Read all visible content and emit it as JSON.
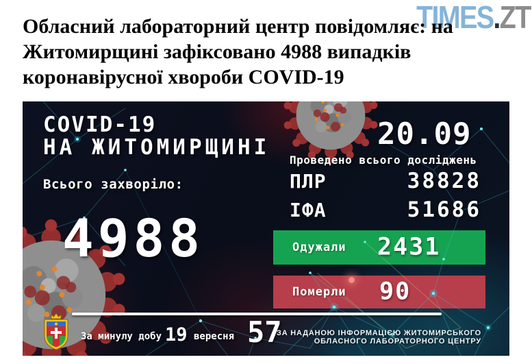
{
  "header": {
    "title_lines": [
      "Обласний лабораторний центр повідомляє: на",
      "Житомирщині зафіксовано 4988 випадків",
      "коронавірусної хвороби COVID-19"
    ],
    "logo": {
      "primary": "TIMES",
      "dot": ".",
      "suffix": "ZT",
      "primary_color": "#85b4d9",
      "dot_color": "#22313f",
      "suffix_color": "#8c8c8c"
    }
  },
  "infographic": {
    "title_line1": "COVID-19",
    "title_line2": "НА ЖИТОМИРЩИНІ",
    "total_label": "Всього захворіло:",
    "total_value": "4988",
    "date": "20.09",
    "tests_label": "Проведено всього досліджень",
    "tests": [
      {
        "label": "ПЛР",
        "value": "38828"
      },
      {
        "label": "ІФА",
        "value": "51686"
      }
    ],
    "recovered": {
      "label": "Одужали",
      "value": "2431",
      "color": "#16a351"
    },
    "died": {
      "label": "Померли",
      "value": "90",
      "color": "#b73e4b"
    },
    "daily": {
      "prefix": "За минулу добу",
      "day": "19",
      "month": "вересня",
      "value": "57"
    },
    "attribution_lines": [
      "ЗА НАДАНОЮ ІНФОРМАЦІЄЮ ЖИТОМИРСЬКОГО",
      "ОБЛАСНОГО ЛАБОРАТОРНОГО ЦЕНТРУ"
    ]
  }
}
